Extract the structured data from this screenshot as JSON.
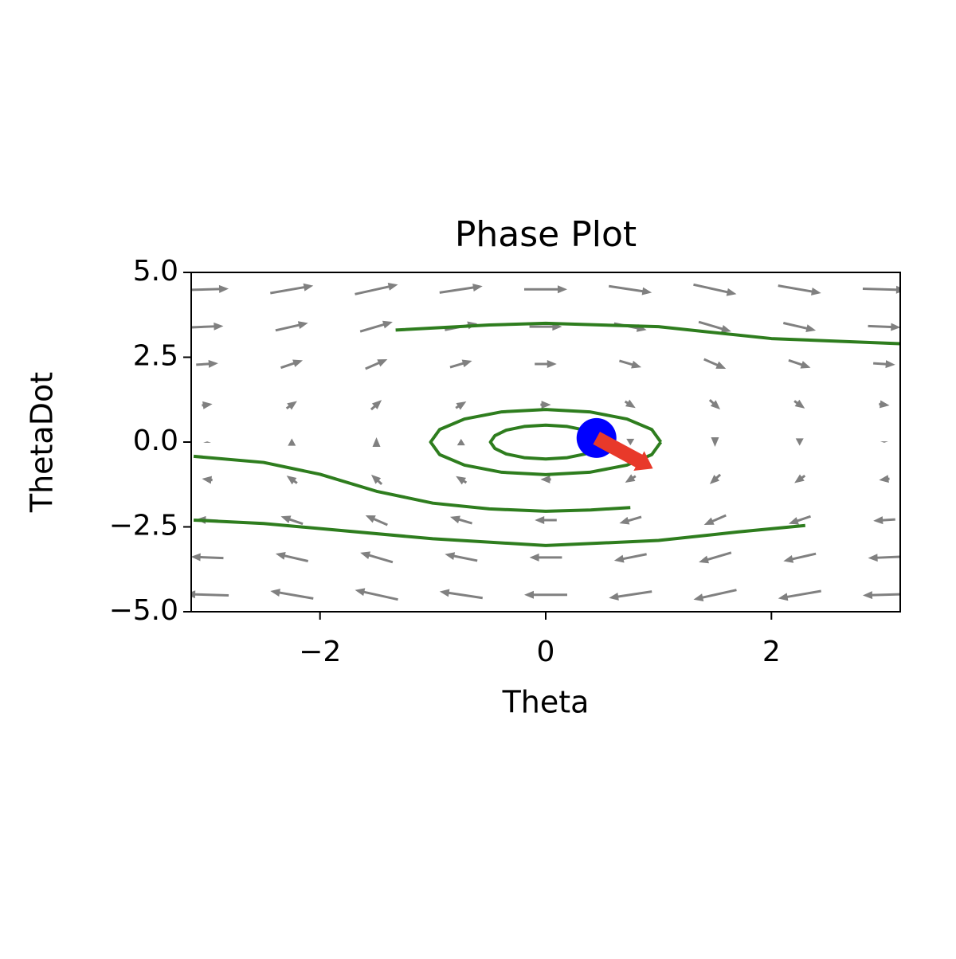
{
  "chart_data": {
    "type": "phase",
    "title": "Phase Plot",
    "xlabel": "Theta",
    "ylabel": "ThetaDot",
    "xlim": [
      -3.14159,
      3.14159
    ],
    "ylim": [
      -5,
      5
    ],
    "xticks": [
      {
        "value": -2,
        "label": "−2"
      },
      0,
      2
    ],
    "yticks": [
      {
        "value": 5,
        "label": "5.0"
      },
      {
        "value": 2.5,
        "label": "2.5"
      },
      {
        "value": 0,
        "label": "0.0"
      },
      {
        "value": -2.5,
        "label": "−2.5"
      },
      {
        "value": -5,
        "label": "−5.0"
      }
    ],
    "quiver": {
      "color": "#808080",
      "x": [
        -3,
        -2.25,
        -1.5,
        -0.75,
        0,
        0.75,
        1.5,
        2.25,
        3
      ],
      "y": [
        -4.5,
        -3.4,
        -2.3,
        -1.1,
        0,
        1.1,
        2.3,
        3.4,
        4.5
      ],
      "u": [
        [
          -4.5,
          -4.5,
          -4.5,
          -4.5,
          -4.5,
          -4.5,
          -4.5,
          -4.5,
          -4.5
        ],
        [
          -3.4,
          -3.4,
          -3.4,
          -3.4,
          -3.4,
          -3.4,
          -3.4,
          -3.4,
          -3.4
        ],
        [
          -2.3,
          -2.3,
          -2.3,
          -2.3,
          -2.3,
          -2.3,
          -2.3,
          -2.3,
          -2.3
        ],
        [
          -1.1,
          -1.1,
          -1.1,
          -1.1,
          -1.1,
          -1.1,
          -1.1,
          -1.1,
          -1.1
        ],
        [
          0,
          0,
          0,
          0,
          0,
          0,
          0,
          0,
          0
        ],
        [
          1.1,
          1.1,
          1.1,
          1.1,
          1.1,
          1.1,
          1.1,
          1.1,
          1.1
        ],
        [
          2.3,
          2.3,
          2.3,
          2.3,
          2.3,
          2.3,
          2.3,
          2.3,
          2.3
        ],
        [
          3.4,
          3.4,
          3.4,
          3.4,
          3.4,
          3.4,
          3.4,
          3.4,
          3.4
        ],
        [
          4.5,
          4.5,
          4.5,
          4.5,
          4.5,
          4.5,
          4.5,
          4.5,
          4.5
        ]
      ],
      "v": [
        [
          0.14,
          0.78,
          1.0,
          0.68,
          0,
          -0.68,
          -1.0,
          -0.78,
          -0.14
        ],
        [
          0.14,
          0.78,
          1.0,
          0.68,
          0,
          -0.68,
          -1.0,
          -0.78,
          -0.14
        ],
        [
          0.14,
          0.78,
          1.0,
          0.68,
          0,
          -0.68,
          -1.0,
          -0.78,
          -0.14
        ],
        [
          0.14,
          0.78,
          1.0,
          0.68,
          0,
          -0.68,
          -1.0,
          -0.78,
          -0.14
        ],
        [
          0.14,
          0.78,
          1.0,
          0.68,
          0,
          -0.68,
          -1.0,
          -0.78,
          -0.14
        ],
        [
          0.14,
          0.78,
          1.0,
          0.68,
          0,
          -0.68,
          -1.0,
          -0.78,
          -0.14
        ],
        [
          0.14,
          0.78,
          1.0,
          0.68,
          0,
          -0.68,
          -1.0,
          -0.78,
          -0.14
        ],
        [
          0.14,
          0.78,
          1.0,
          0.68,
          0,
          -0.68,
          -1.0,
          -0.78,
          -0.14
        ],
        [
          0.14,
          0.78,
          1.0,
          0.68,
          0,
          -0.68,
          -1.0,
          -0.78,
          -0.14
        ]
      ]
    },
    "series": [
      {
        "color": "#2e7d1e",
        "x": [
          -1.33,
          -0.5,
          0,
          1,
          2,
          3.14
        ],
        "y": [
          3.3,
          3.45,
          3.5,
          3.4,
          3.05,
          2.9
        ]
      },
      {
        "color": "#2e7d1e",
        "x": [
          1.02,
          0.94,
          0.72,
          0.39,
          0,
          -0.39,
          -0.72,
          -0.94,
          -1.02,
          -0.94,
          -0.72,
          -0.39,
          0,
          0.39,
          0.72,
          0.94,
          1.02
        ],
        "y": [
          0,
          0.37,
          0.68,
          0.89,
          0.96,
          0.89,
          0.68,
          0.37,
          0,
          -0.37,
          -0.68,
          -0.89,
          -0.96,
          -0.89,
          -0.68,
          -0.37,
          0
        ]
      },
      {
        "color": "#2e7d1e",
        "x": [
          0.49,
          0.45,
          0.35,
          0.19,
          0,
          -0.19,
          -0.35,
          -0.45,
          -0.49,
          -0.45,
          -0.35,
          -0.19,
          0,
          0.19,
          0.35,
          0.45,
          0.49
        ],
        "y": [
          0,
          0.19,
          0.35,
          0.46,
          0.5,
          0.46,
          0.35,
          0.19,
          0,
          -0.19,
          -0.35,
          -0.46,
          -0.5,
          -0.46,
          -0.35,
          -0.19,
          0
        ]
      },
      {
        "color": "#2e7d1e",
        "x": [
          -3.12,
          -2.5,
          -2.0,
          -1.5,
          -1.0,
          -0.5,
          0,
          0.4,
          0.75
        ],
        "y": [
          -0.42,
          -0.6,
          -0.95,
          -1.45,
          -1.8,
          -1.97,
          -2.04,
          -2.0,
          -1.93
        ]
      },
      {
        "color": "#2e7d1e",
        "x": [
          -3.12,
          -2.5,
          -2,
          -1,
          0,
          1,
          1.7,
          2.3
        ],
        "y": [
          -2.3,
          -2.4,
          -2.55,
          -2.85,
          -3.05,
          -2.9,
          -2.65,
          -2.46
        ]
      }
    ],
    "state": {
      "x": 0.45,
      "y": 0.12,
      "color": "#0000ff"
    },
    "direction": {
      "x": 0.45,
      "y": 0.12,
      "u": 0.5,
      "v": -0.9,
      "color": "#e8392a"
    }
  }
}
